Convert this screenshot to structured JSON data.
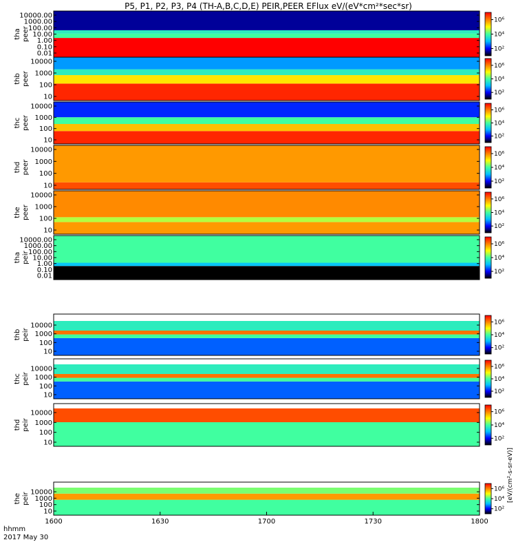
{
  "title": "P5, P1, P2, P3, P4 (TH-A,B,C,D,E) PEIR,PEER EFlux eV/(eV*cm²*sec*sr)",
  "x_axis": {
    "name": "hhmm",
    "date": "2017 May 30",
    "tick_labels": [
      "1600",
      "1630",
      "1700",
      "1730",
      "1800"
    ]
  },
  "colorbar_unit": "[eV/(cm²-s-sr-eV)]",
  "colors": {
    "spectrum": [
      "#000000",
      "#0000ff",
      "#00c0ff",
      "#40ffa0",
      "#ffff00",
      "#ff8000",
      "#ff0000"
    ],
    "fill_gap": "#ffffff"
  },
  "chart_data": {
    "type": "heatmap",
    "x_range_hhmm": [
      "1600",
      "1800"
    ],
    "panels": [
      {
        "label_top": "tha",
        "label_bottom": "peer",
        "y_tick_labels": [
          "10000.00",
          "1000.00",
          "100.00",
          "10.00",
          "1.00",
          "0.10",
          "0.01"
        ],
        "ylim": [
          0.01,
          30000
        ],
        "scale": "log",
        "colorbar_ticks": [
          "10⁶",
          "10⁴",
          "10²"
        ],
        "bands": [
          {
            "y0": 0.01,
            "y1": 5,
            "level": 1.0
          },
          {
            "y0": 5,
            "y1": 20,
            "level": 0.5
          },
          {
            "y0": 20,
            "y1": 60,
            "level": 0.45
          },
          {
            "y0": 60,
            "y1": 30000,
            "level": 0.1
          }
        ]
      },
      {
        "label_top": "thb",
        "label_bottom": "peer",
        "y_tick_labels": [
          "10000",
          "1000",
          "100",
          "10"
        ],
        "ylim": [
          8,
          30000
        ],
        "scale": "log",
        "colorbar_ticks": [
          "10⁶",
          "10⁴",
          "10²"
        ],
        "bands": [
          {
            "y0": 8,
            "y1": 200,
            "level": 0.95
          },
          {
            "y0": 200,
            "y1": 1000,
            "level": 0.7
          },
          {
            "y0": 1000,
            "y1": 3000,
            "level": 0.45
          },
          {
            "y0": 3000,
            "y1": 30000,
            "level": 0.3
          }
        ]
      },
      {
        "label_top": "thc",
        "label_bottom": "peer",
        "y_tick_labels": [
          "10000",
          "1000",
          "100",
          "10"
        ],
        "ylim": [
          8,
          30000
        ],
        "scale": "log",
        "colorbar_ticks": [
          "10⁶",
          "10⁴",
          "10²"
        ],
        "bands": [
          {
            "y0": 8,
            "y1": 100,
            "level": 0.95
          },
          {
            "y0": 100,
            "y1": 400,
            "level": 0.75
          },
          {
            "y0": 400,
            "y1": 1500,
            "level": 0.5
          },
          {
            "y0": 1500,
            "y1": 30000,
            "level": 0.2
          }
        ]
      },
      {
        "label_top": "thd",
        "label_bottom": "peer",
        "y_tick_labels": [
          "10000",
          "1000",
          "100",
          "10"
        ],
        "ylim": [
          8,
          30000
        ],
        "scale": "log",
        "colorbar_ticks": [
          "10⁶",
          "10⁴",
          "10²"
        ],
        "bands": [
          {
            "y0": 8,
            "y1": 30,
            "level": 0.9
          },
          {
            "y0": 30,
            "y1": 30000,
            "level": 0.8
          }
        ]
      },
      {
        "label_top": "the",
        "label_bottom": "peer",
        "y_tick_labels": [
          "10000",
          "1000",
          "100",
          "10"
        ],
        "ylim": [
          8,
          30000
        ],
        "scale": "log",
        "colorbar_ticks": [
          "10⁶",
          "10⁴",
          "10²"
        ],
        "bands": [
          {
            "y0": 8,
            "y1": 80,
            "level": 0.8
          },
          {
            "y0": 80,
            "y1": 200,
            "level": 0.6
          },
          {
            "y0": 200,
            "y1": 30000,
            "level": 0.82
          }
        ]
      },
      {
        "label_top": "tha",
        "label_bottom": "peir",
        "y_tick_labels": [
          "10000.00",
          "1000.00",
          "100.00",
          "10.00",
          "1.00",
          "0.10",
          "0.01"
        ],
        "ylim": [
          0.01,
          30000
        ],
        "scale": "log",
        "colorbar_ticks": [
          "10⁶",
          "10⁴",
          "10²"
        ],
        "bands": [
          {
            "y0": 0.01,
            "y1": 1,
            "level": 0.0
          },
          {
            "y0": 1,
            "y1": 3,
            "level": 0.35
          },
          {
            "y0": 3,
            "y1": 30000,
            "level": 0.5
          }
        ]
      },
      {
        "label_top": "thb",
        "label_bottom": "peir",
        "y_tick_labels": [
          "10000",
          "1000",
          "100",
          "10"
        ],
        "ylim": [
          8,
          30000
        ],
        "scale": "log",
        "colorbar_ticks": [
          "10⁶",
          "10⁴",
          "10²"
        ],
        "bands": [
          {
            "y0": 8,
            "y1": 500,
            "level": 0.25
          },
          {
            "y0": 500,
            "y1": 1200,
            "level": 0.5
          },
          {
            "y0": 1200,
            "y1": 3000,
            "level": 0.85
          },
          {
            "y0": 3000,
            "y1": 30000,
            "level": 0.45
          }
        ]
      },
      {
        "label_top": "thc",
        "label_bottom": "peir",
        "y_tick_labels": [
          "10000",
          "1000",
          "100",
          "10"
        ],
        "ylim": [
          8,
          30000
        ],
        "scale": "log",
        "colorbar_ticks": [
          "10⁶",
          "10⁴",
          "10²"
        ],
        "bands": [
          {
            "y0": 8,
            "y1": 500,
            "level": 0.25
          },
          {
            "y0": 500,
            "y1": 1200,
            "level": 0.5
          },
          {
            "y0": 1200,
            "y1": 3000,
            "level": 0.85
          },
          {
            "y0": 3000,
            "y1": 30000,
            "level": 0.45
          }
        ]
      },
      {
        "label_top": "thd",
        "label_bottom": "peir",
        "y_tick_labels": [
          "10000",
          "1000",
          "100",
          "10"
        ],
        "ylim": [
          8,
          30000
        ],
        "scale": "log",
        "colorbar_ticks": [
          "10⁶",
          "10⁴",
          "10²"
        ],
        "bands": [
          {
            "y0": 8,
            "y1": 1500,
            "level": 0.5
          },
          {
            "y0": 1500,
            "y1": 30000,
            "level": 0.9
          }
        ]
      },
      {
        "label_top": "the",
        "label_bottom": "peir",
        "y_tick_labels": [
          "10000",
          "1000",
          "100",
          "10"
        ],
        "ylim": [
          8,
          30000
        ],
        "scale": "log",
        "colorbar_ticks": [
          "10⁶",
          "10⁴",
          "10²"
        ],
        "bands": [
          {
            "y0": 8,
            "y1": 800,
            "level": 0.5
          },
          {
            "y0": 800,
            "y1": 5000,
            "level": 0.8
          },
          {
            "y0": 5000,
            "y1": 30000,
            "level": 0.55
          }
        ]
      }
    ]
  }
}
